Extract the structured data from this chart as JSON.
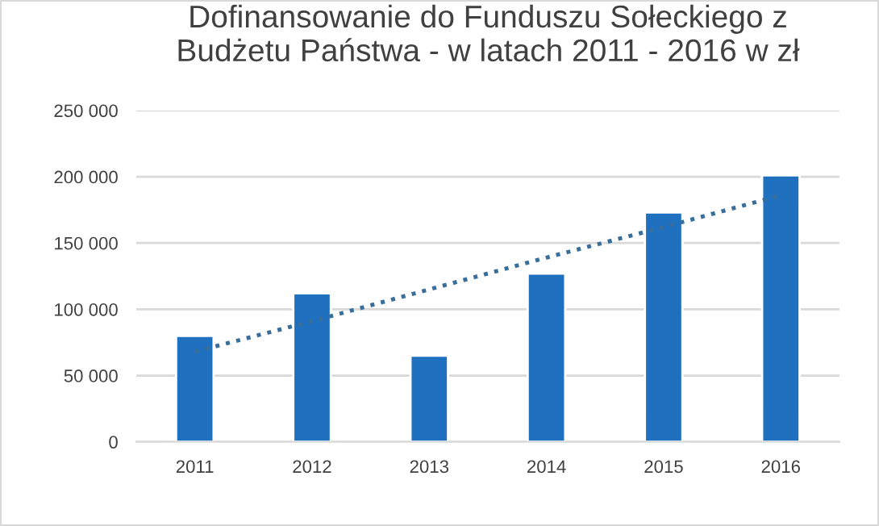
{
  "chart_data": {
    "type": "bar",
    "title": "Dofinansowanie do Funduszu Sołeckiego z\nBudżetu Państwa - w latach 2011 - 2016 w zł",
    "categories": [
      "2011",
      "2012",
      "2013",
      "2014",
      "2015",
      "2016"
    ],
    "series": [
      {
        "color": "#2070c0",
        "values": [
          80000,
          112000,
          65000,
          127000,
          173000,
          201000
        ]
      },
      {
        "type": "line",
        "line_style": "dotted",
        "color": "#3a6e9a",
        "values": [
          68000,
          91000,
          115000,
          139000,
          162000,
          186000
        ]
      }
    ],
    "ylim": [
      0,
      250000
    ],
    "yticks": [
      {
        "value": 0,
        "label": "0"
      },
      {
        "value": 50000,
        "label": "50 000"
      },
      {
        "value": 100000,
        "label": "100 000"
      },
      {
        "value": 150000,
        "label": "150 000"
      },
      {
        "value": 200000,
        "label": "200 000"
      },
      {
        "value": 250000,
        "label": "250 000"
      }
    ],
    "grid": "y",
    "legend": false
  }
}
